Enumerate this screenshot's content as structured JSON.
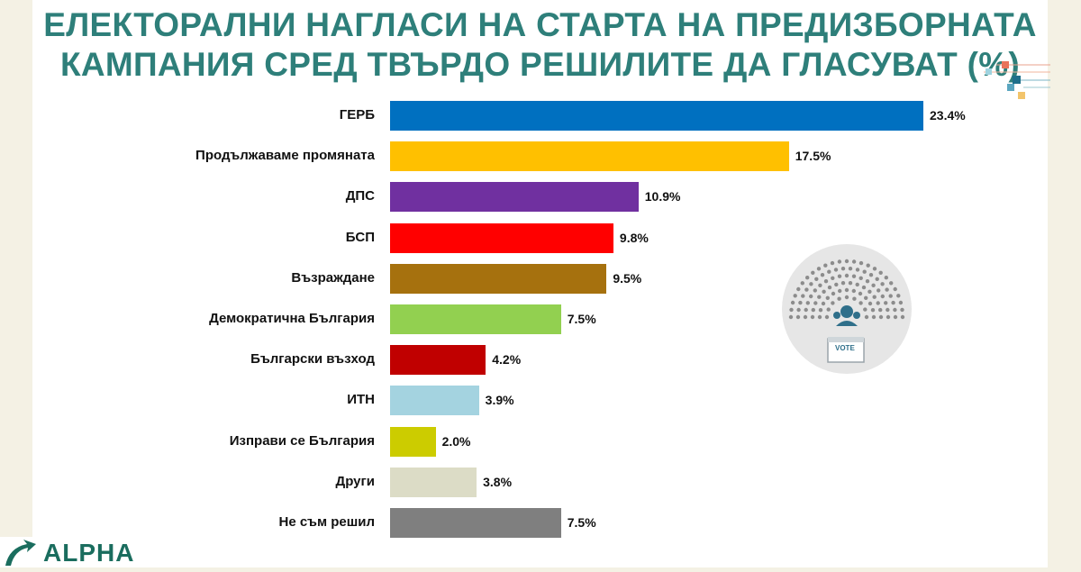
{
  "chart_data": {
    "type": "bar",
    "orientation": "horizontal",
    "title_lines": [
      "ЕЛЕКТОРАЛНИ НАГЛАСИ НА СТАРТА НА ПРЕДИЗБОРНАТА",
      "КАМПАНИЯ СРЕД ТВЪРДО РЕШИЛИТЕ ДА ГЛАСУВАТ (%)"
    ],
    "categories": [
      "ГЕРБ",
      "Продължаваме промяната",
      "ДПС",
      "БСП",
      "Възраждане",
      "Демократична България",
      "Български възход",
      "ИТН",
      "Изправи се България",
      "Други",
      "Не съм решил"
    ],
    "values": [
      23.4,
      17.5,
      10.9,
      9.8,
      9.5,
      7.5,
      4.2,
      3.9,
      2.0,
      3.8,
      7.5
    ],
    "value_labels": [
      "23.4%",
      "17.5%",
      "10.9%",
      "9.8%",
      "9.5%",
      "7.5%",
      "4.2%",
      "3.9%",
      "2.0%",
      "3.8%",
      "7.5%"
    ],
    "colors": [
      "#0070c0",
      "#ffc000",
      "#7030a0",
      "#ff0000",
      "#a6710e",
      "#92d050",
      "#c00000",
      "#a4d3e0",
      "#cccc00",
      "#dcdcc6",
      "#7f7f7f"
    ],
    "xlim": [
      0,
      23.4
    ],
    "grid": false,
    "legend": "none"
  },
  "badge": {
    "vote_text": "VOTE"
  },
  "logo": {
    "text": "ALPHA"
  }
}
